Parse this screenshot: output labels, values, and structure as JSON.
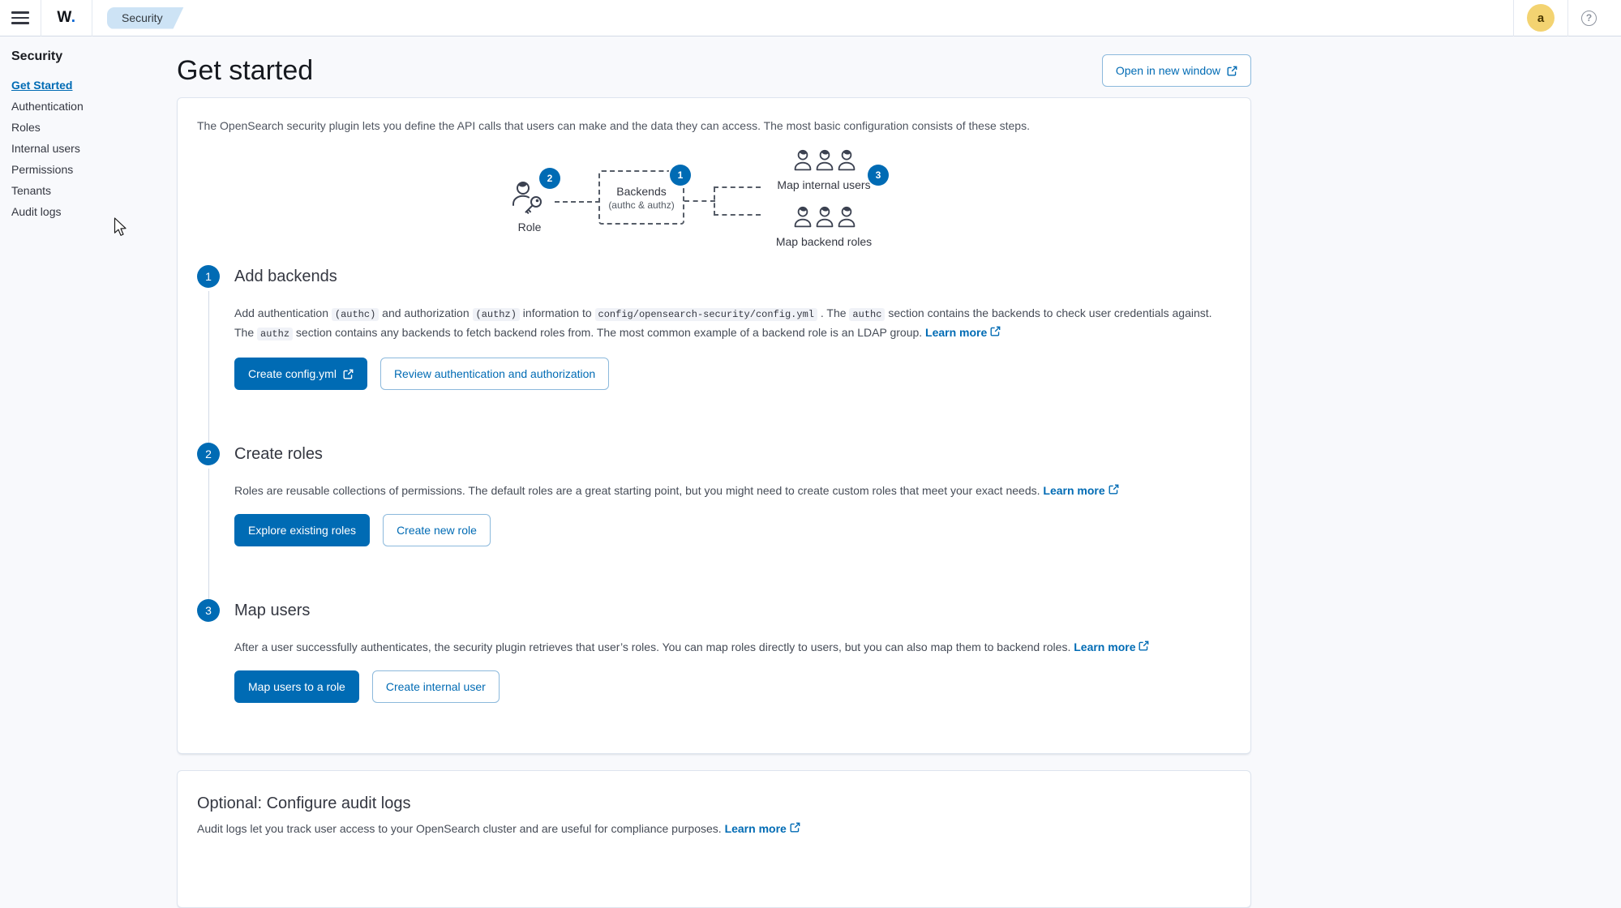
{
  "header": {
    "logo_text": "W",
    "logo_dot": ".",
    "breadcrumb": "Security",
    "avatar_letter": "a",
    "help_glyph": "?"
  },
  "sidebar": {
    "title": "Security",
    "items": [
      {
        "label": "Get Started",
        "active": true
      },
      {
        "label": "Authentication",
        "active": false
      },
      {
        "label": "Roles",
        "active": false
      },
      {
        "label": "Internal users",
        "active": false
      },
      {
        "label": "Permissions",
        "active": false
      },
      {
        "label": "Tenants",
        "active": false
      },
      {
        "label": "Audit logs",
        "active": false
      }
    ]
  },
  "page": {
    "title": "Get started",
    "open_new_window_label": "Open in new window"
  },
  "intro": "The OpenSearch security plugin lets you define the API calls that users can make and the data they can access. The most basic configuration consists of these steps.",
  "diagram": {
    "badge1": "1",
    "badge2": "2",
    "badge3": "3",
    "role_label": "Role",
    "backends_title": "Backends",
    "backends_subtitle": "(authc & authz)",
    "map_internal_users_label": "Map internal users",
    "map_backend_roles_label": "Map backend roles"
  },
  "steps": [
    {
      "number": "1",
      "title": "Add backends",
      "description": [
        {
          "type": "text",
          "text": "Add authentication "
        },
        {
          "type": "code",
          "text": "(authc)"
        },
        {
          "type": "text",
          "text": " and authorization "
        },
        {
          "type": "code",
          "text": "(authz)"
        },
        {
          "type": "text",
          "text": " information to "
        },
        {
          "type": "code",
          "text": "config/opensearch-security/config.yml"
        },
        {
          "type": "text",
          "text": " . The "
        },
        {
          "type": "code",
          "text": "authc"
        },
        {
          "type": "text",
          "text": " section contains the backends to check user credentials against. The "
        },
        {
          "type": "code",
          "text": "authz"
        },
        {
          "type": "text",
          "text": " section contains any backends to fetch backend roles from. The most common example of a backend role is an LDAP group. "
        },
        {
          "type": "link",
          "text": "Learn more"
        }
      ],
      "buttons": [
        {
          "label": "Create config.yml",
          "variant": "fill",
          "external": true
        },
        {
          "label": "Review authentication and authorization",
          "variant": "outline",
          "external": false
        }
      ]
    },
    {
      "number": "2",
      "title": "Create roles",
      "description": [
        {
          "type": "text",
          "text": "Roles are reusable collections of permissions. The default roles are a great starting point, but you might need to create custom roles that meet your exact needs. "
        },
        {
          "type": "link",
          "text": "Learn more"
        }
      ],
      "buttons": [
        {
          "label": "Explore existing roles",
          "variant": "fill",
          "external": false
        },
        {
          "label": "Create new role",
          "variant": "outline",
          "external": false
        }
      ]
    },
    {
      "number": "3",
      "title": "Map users",
      "description": [
        {
          "type": "text",
          "text": "After a user successfully authenticates, the security plugin retrieves that user’s roles. You can map roles directly to users, but you can also map them to backend roles. "
        },
        {
          "type": "link",
          "text": "Learn more"
        }
      ],
      "buttons": [
        {
          "label": "Map users to a role",
          "variant": "fill",
          "external": false
        },
        {
          "label": "Create internal user",
          "variant": "outline",
          "external": false
        }
      ]
    }
  ],
  "audit": {
    "title": "Optional: Configure audit logs",
    "description": "Audit logs let you track user access to your OpenSearch cluster and are useful for compliance purposes. ",
    "link_label": "Learn more"
  },
  "colors": {
    "primary": "#006BB4",
    "breadcrumb_bg": "#cde3f5",
    "avatar_bg": "#f3d371",
    "card_border": "#dde4ee",
    "page_bg": "#f8f9fc"
  },
  "icons": [
    "menu-icon",
    "help-icon",
    "external-link-icon",
    "role-key-icon",
    "users-group-icon",
    "mouse-cursor"
  ]
}
